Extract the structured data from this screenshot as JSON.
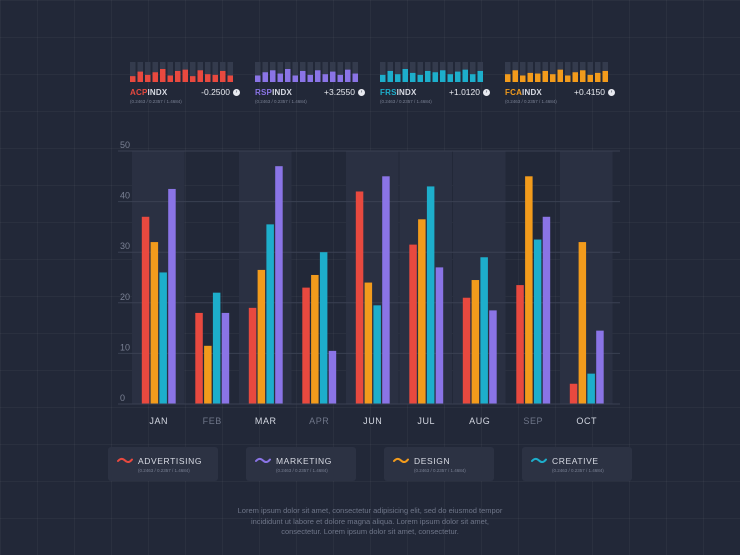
{
  "colors": {
    "advertising": "#e8493f",
    "marketing": "#8a74e6",
    "design": "#f29b1c",
    "creative": "#1daecb",
    "axis_text": "#aeb3c1",
    "tick_text": "#7a8194"
  },
  "tickers": [
    {
      "prefix": "ACP",
      "suffix": "INDX",
      "value": "-0.2500",
      "sub": "(0.2463 / 0.2357 / 1.4684)",
      "color": "#e8493f",
      "bars": [
        0.45,
        0.8,
        0.55,
        0.75,
        1.0,
        0.5,
        0.85,
        0.95,
        0.45,
        0.9,
        0.6,
        0.55,
        0.85,
        0.5
      ]
    },
    {
      "prefix": "RSP",
      "suffix": "INDX",
      "value": "+3.2550",
      "sub": "(0.2463 / 0.2357 / 1.4684)",
      "color": "#8a74e6",
      "bars": [
        0.5,
        0.75,
        0.9,
        0.65,
        1.0,
        0.5,
        0.85,
        0.55,
        0.9,
        0.6,
        0.8,
        0.55,
        0.95,
        0.65
      ]
    },
    {
      "prefix": "FRS",
      "suffix": "INDX",
      "value": "+1.0120",
      "sub": "(0.2463 / 0.2357 / 1.4684)",
      "color": "#1daecb",
      "bars": [
        0.55,
        0.85,
        0.6,
        1.0,
        0.7,
        0.55,
        0.85,
        0.75,
        0.9,
        0.6,
        0.8,
        0.95,
        0.6,
        0.85
      ]
    },
    {
      "prefix": "FCA",
      "suffix": "INDX",
      "value": "+0.4150",
      "sub": "(0.2463 / 0.2357 / 1.4684)",
      "color": "#f29b1c",
      "bars": [
        0.6,
        0.9,
        0.5,
        0.7,
        0.65,
        0.85,
        0.6,
        0.95,
        0.5,
        0.75,
        0.9,
        0.55,
        0.7,
        0.85
      ]
    }
  ],
  "chart_data": {
    "type": "bar",
    "categories": [
      "JAN",
      "FEB",
      "MAR",
      "APR",
      "JUN",
      "JUL",
      "AUG",
      "SEP",
      "OCT"
    ],
    "highlighted": [
      true,
      false,
      true,
      false,
      true,
      true,
      true,
      false,
      true
    ],
    "ylim": [
      0,
      50
    ],
    "yticks": [
      0,
      10,
      20,
      30,
      40,
      50
    ],
    "series": [
      {
        "name": "ADVERTISING",
        "color": "#e8493f",
        "values": [
          37,
          18,
          19,
          23,
          42,
          31.5,
          21,
          23.5,
          4
        ]
      },
      {
        "name": "DESIGN",
        "color": "#f29b1c",
        "values": [
          32,
          11.5,
          26.5,
          25.5,
          24,
          36.5,
          24.5,
          45,
          32
        ]
      },
      {
        "name": "CREATIVE",
        "color": "#1daecb",
        "values": [
          26,
          22,
          35.5,
          30,
          19.5,
          43,
          29,
          32.5,
          6
        ]
      },
      {
        "name": "MARKETING",
        "color": "#8a74e6",
        "values": [
          42.5,
          18,
          47,
          10.5,
          45,
          27,
          18.5,
          37,
          14.5
        ]
      }
    ]
  },
  "legend": [
    {
      "name": "ADVERTISING",
      "sub": "(0.2463 / 0.2357 / 1.4684)",
      "color": "#e8493f"
    },
    {
      "name": "MARKETING",
      "sub": "(0.2463 / 0.2357 / 1.4684)",
      "color": "#8a74e6"
    },
    {
      "name": "DESIGN",
      "sub": "(0.2463 / 0.2357 / 1.4684)",
      "color": "#f29b1c"
    },
    {
      "name": "CREATIVE",
      "sub": "(0.2463 / 0.2357 / 1.4684)",
      "color": "#1daecb"
    }
  ],
  "footer": {
    "line1": "Lorem ipsum dolor sit amet, consectetur adipisicing elit, sed do eiusmod tempor",
    "line2": "incididunt ut labore et dolore magna aliqua. Lorem ipsum dolor sit amet,",
    "line3": "consectetur. Lorem ipsum dolor sit amet, consectetur."
  }
}
